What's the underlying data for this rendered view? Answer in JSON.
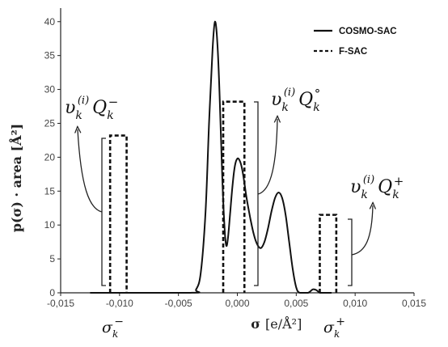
{
  "chart_data": {
    "type": "line",
    "xlabel_main": "σ",
    "xlabel_unit": "[e/Å²]",
    "ylabel": "p(σ) · area [Å²]",
    "xlim": [
      -0.015,
      0.015
    ],
    "ylim": [
      0,
      42
    ],
    "xticks": [
      "-0,015",
      "-0,010",
      "-0,005",
      "0,000",
      "0,005",
      "0,010",
      "0,015"
    ],
    "yticks": [
      "0",
      "5",
      "10",
      "15",
      "20",
      "25",
      "30",
      "35",
      "40"
    ],
    "legend_position": "top-right",
    "series": [
      {
        "name": "COSMO-SAC",
        "style": "solid",
        "x": [
          -0.0125,
          -0.004,
          -0.0035,
          -0.0031,
          -0.0027,
          -0.0024,
          -0.0021,
          -0.0019,
          -0.0017,
          -0.0015,
          -0.0013,
          -0.0011,
          -0.00095,
          -0.0008,
          -0.0006,
          -0.0004,
          -0.0002,
          0.0,
          0.0002,
          0.0004,
          0.0006,
          0.0008,
          0.0011,
          0.0014,
          0.0017,
          0.002,
          0.0023,
          0.0026,
          0.0029,
          0.0032,
          0.0035,
          0.0038,
          0.0041,
          0.0044,
          0.0047,
          0.005,
          0.0053,
          0.006,
          0.0064,
          0.0067,
          0.007,
          0.0073,
          0.008
        ],
        "y": [
          0.0,
          0.0,
          0.5,
          3.0,
          12.0,
          25.0,
          36.0,
          40.0,
          37.0,
          29.0,
          18.0,
          10.0,
          7.0,
          8.0,
          12.0,
          16.0,
          18.8,
          19.8,
          19.5,
          18.3,
          16.2,
          13.8,
          11.0,
          8.6,
          7.1,
          6.6,
          7.5,
          9.5,
          12.0,
          14.0,
          14.8,
          14.0,
          11.5,
          7.5,
          3.5,
          0.8,
          0.0,
          0.0,
          0.5,
          0.4,
          0.0,
          0.0,
          0.0
        ]
      },
      {
        "name": "F-SAC",
        "style": "dashed",
        "bars": [
          {
            "x0": -0.0108,
            "x1": -0.0094,
            "value": 23.2
          },
          {
            "x0": -0.0012,
            "x1": 0.0006,
            "value": 28.2
          },
          {
            "x0": 0.007,
            "x1": 0.0084,
            "value": 11.5
          }
        ]
      }
    ],
    "annotations": [
      {
        "base": "υ",
        "sub": "k",
        "sup": "(i)",
        "q": "Q",
        "qsub": "k",
        "qsup": "−"
      },
      {
        "base": "υ",
        "sub": "k",
        "sup": "(i)",
        "q": "Q",
        "qsub": "k",
        "qsup": "°"
      },
      {
        "base": "υ",
        "sub": "k",
        "sup": "(i)",
        "q": "Q",
        "qsub": "k",
        "qsup": "+"
      }
    ],
    "sigma_labels": [
      {
        "base": "σ",
        "sub": "k",
        "sup": "−"
      },
      {
        "base": "σ",
        "sub": "k",
        "sup": "+"
      }
    ]
  }
}
